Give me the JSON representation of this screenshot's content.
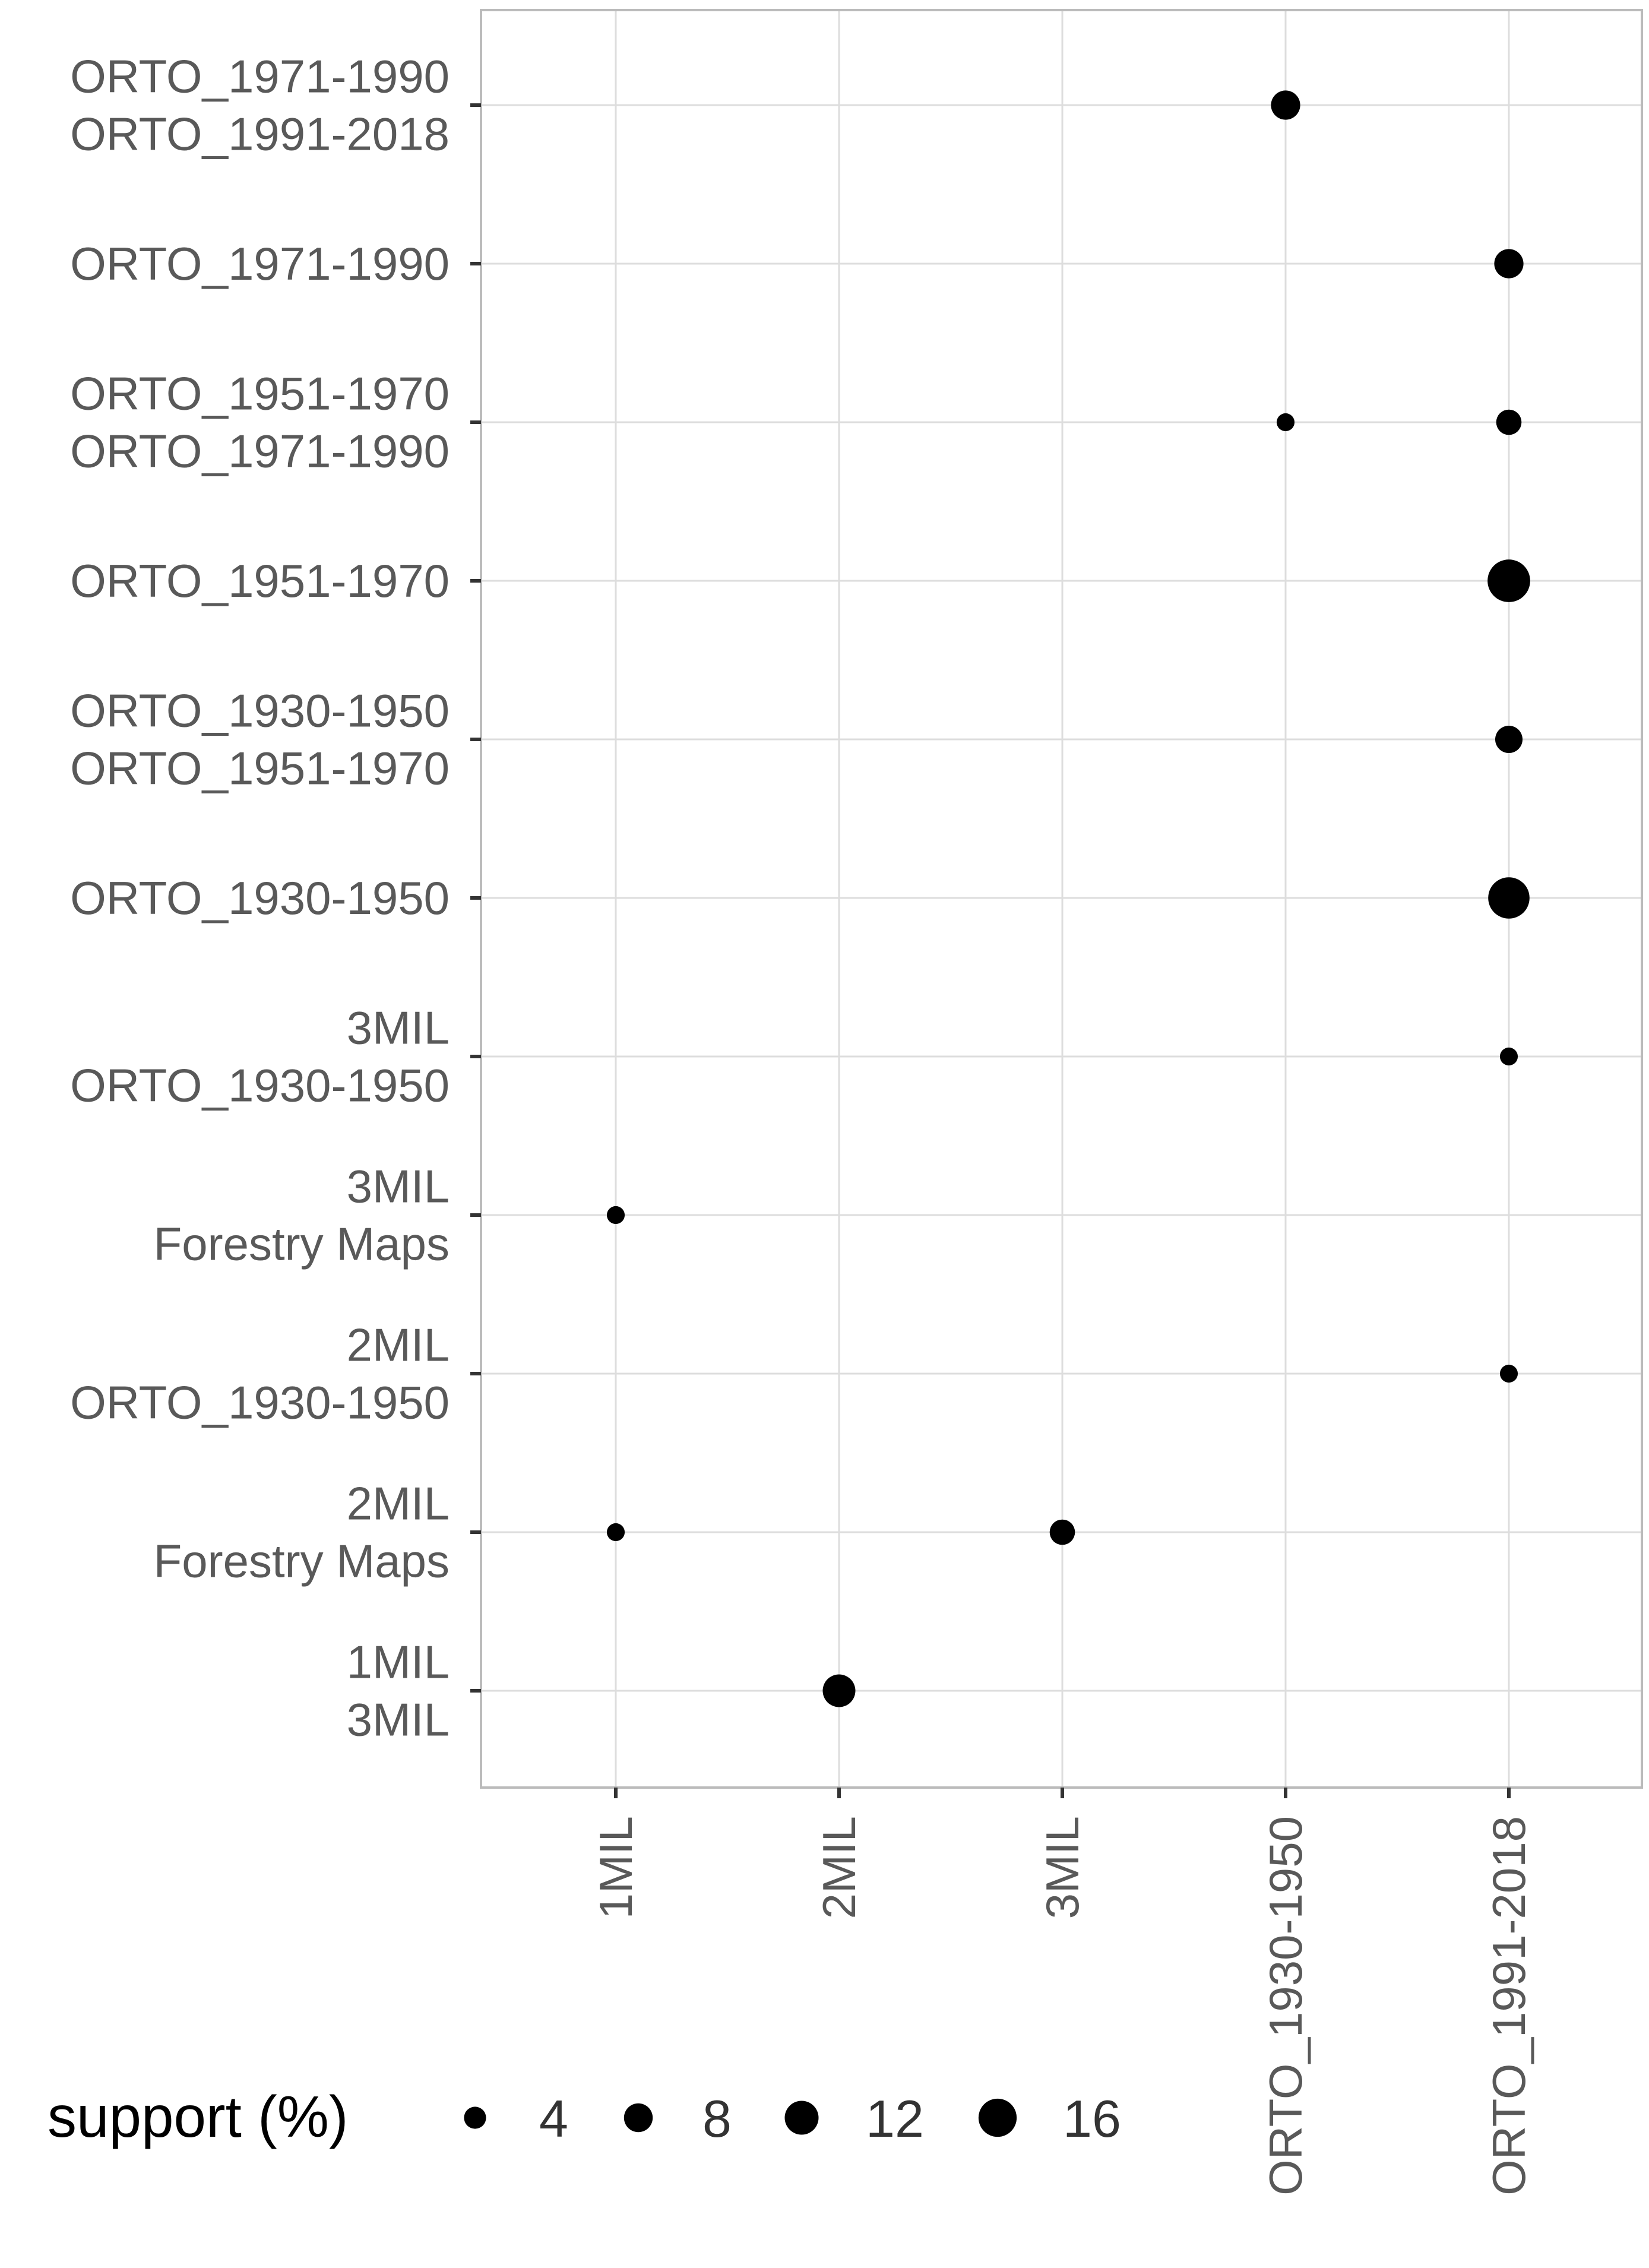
{
  "chart_data": {
    "type": "scatter",
    "x_categories": [
      "1MIL",
      "2MIL",
      "3MIL",
      "ORTO_1930-1950",
      "ORTO_1991-2018"
    ],
    "y_categories": [
      [
        "ORTO_1971-1990",
        "ORTO_1991-2018"
      ],
      [
        "ORTO_1971-1990"
      ],
      [
        "ORTO_1951-1970",
        "ORTO_1971-1990"
      ],
      [
        "ORTO_1951-1970"
      ],
      [
        "ORTO_1930-1950",
        "ORTO_1951-1970"
      ],
      [
        "ORTO_1930-1950"
      ],
      [
        "3MIL",
        "ORTO_1930-1950"
      ],
      [
        "3MIL",
        "Forestry Maps"
      ],
      [
        "2MIL",
        "ORTO_1930-1950"
      ],
      [
        "2MIL",
        "Forestry Maps"
      ],
      [
        "1MIL",
        "3MIL"
      ]
    ],
    "points": [
      {
        "x": "ORTO_1930-1950",
        "y": 0,
        "support": 8
      },
      {
        "x": "ORTO_1991-2018",
        "y": 1,
        "support": 8
      },
      {
        "x": "ORTO_1930-1950",
        "y": 2,
        "support": 3
      },
      {
        "x": "ORTO_1991-2018",
        "y": 2,
        "support": 6
      },
      {
        "x": "ORTO_1991-2018",
        "y": 3,
        "support": 17
      },
      {
        "x": "ORTO_1991-2018",
        "y": 4,
        "support": 7
      },
      {
        "x": "ORTO_1991-2018",
        "y": 5,
        "support": 16
      },
      {
        "x": "ORTO_1991-2018",
        "y": 6,
        "support": 3
      },
      {
        "x": "1MIL",
        "y": 7,
        "support": 3
      },
      {
        "x": "ORTO_1991-2018",
        "y": 8,
        "support": 3
      },
      {
        "x": "1MIL",
        "y": 9,
        "support": 3
      },
      {
        "x": "3MIL",
        "y": 9,
        "support": 6
      },
      {
        "x": "2MIL",
        "y": 10,
        "support": 10
      }
    ],
    "size_legend": {
      "title": "support (%)",
      "values": [
        4,
        8,
        12,
        16
      ],
      "labels": [
        "4",
        "8",
        "12",
        "16"
      ],
      "placement": "bottom-left"
    },
    "grid": true,
    "colors": {
      "point": "#000000",
      "grid": "#dddddd",
      "panel_border": "#bbbbbb",
      "tick": "#333333",
      "tick_label": "#595959"
    }
  }
}
